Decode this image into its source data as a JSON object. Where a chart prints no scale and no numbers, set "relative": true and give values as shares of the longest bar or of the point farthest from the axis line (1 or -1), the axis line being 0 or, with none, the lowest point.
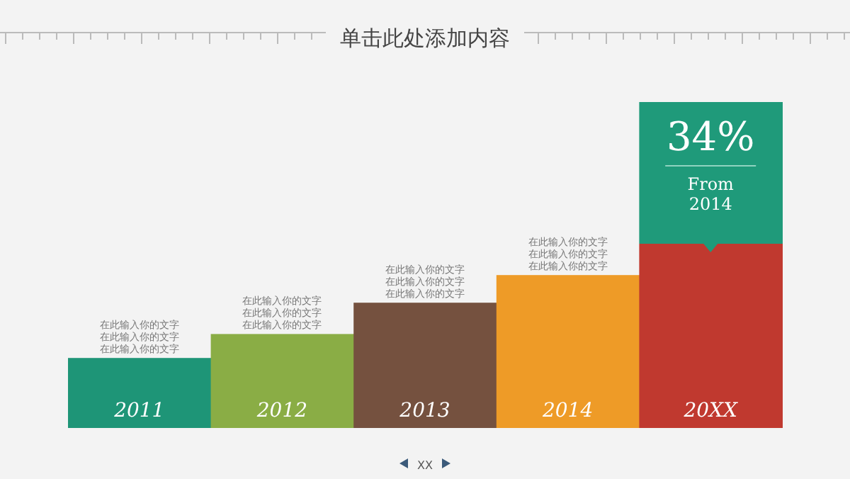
{
  "chart_data": {
    "type": "bar",
    "title": "单击此处添加内容",
    "categories": [
      "2011",
      "2012",
      "2013",
      "2014",
      "20XX"
    ],
    "values": [
      0.38,
      0.51,
      0.68,
      0.83,
      1
    ],
    "colors": [
      "#1e9577",
      "#8aad45",
      "#75513f",
      "#ee9b27",
      "#c0392f"
    ],
    "relative": true,
    "annotations": [
      {
        "text": "在此输入你的文字",
        "x": "2011",
        "y": 0.38
      },
      {
        "text": "在此输入你的文字",
        "x": "2011",
        "y": 0.38
      },
      {
        "text": "在此输入你的文字",
        "x": "2011",
        "y": 0.38
      },
      {
        "text": "在此输入你的文字",
        "x": "2012",
        "y": 0.51
      },
      {
        "text": "在此输入你的文字",
        "x": "2012",
        "y": 0.51
      },
      {
        "text": "在此输入你的文字",
        "x": "2012",
        "y": 0.51
      },
      {
        "text": "在此输入你的文字",
        "x": "2013",
        "y": 0.68
      },
      {
        "text": "在此输入你的文字",
        "x": "2013",
        "y": 0.68
      },
      {
        "text": "在此输入你的文字",
        "x": "2013",
        "y": 0.68
      },
      {
        "text": "在此输入你的文字",
        "x": "2014",
        "y": 0.83
      },
      {
        "text": "在此输入你的文字",
        "x": "2014",
        "y": 0.83
      },
      {
        "text": "在此输入你的文字",
        "x": "2014",
        "y": 0.83
      },
      {
        "text": "34%",
        "x": "20XX",
        "y": 1
      },
      {
        "text": "From 2014",
        "x": "20XX",
        "y": 1
      },
      "XX"
    ]
  }
}
